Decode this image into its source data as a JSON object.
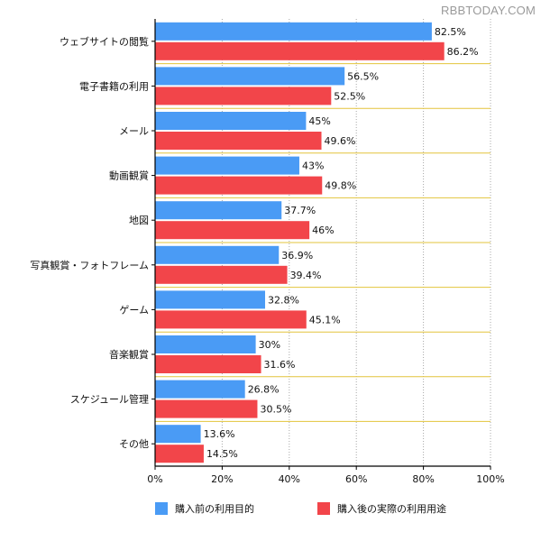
{
  "watermark": "RBBTODAY.COM",
  "chart_data": {
    "type": "bar",
    "orientation": "horizontal",
    "categories": [
      "ウェブサイトの閲覧",
      "電子書籍の利用",
      "メール",
      "動画観賞",
      "地図",
      "写真観賞・フォトフレーム",
      "ゲーム",
      "音楽観賞",
      "スケジュール管理",
      "その他"
    ],
    "series": [
      {
        "name": "購入前の利用目的",
        "color": "#4a9bf5",
        "values": [
          82.5,
          56.5,
          45,
          43,
          37.7,
          36.9,
          32.8,
          30,
          26.8,
          13.6
        ],
        "labels": [
          "82.5%",
          "56.5%",
          "45%",
          "43%",
          "37.7%",
          "36.9%",
          "32.8%",
          "30%",
          "26.8%",
          "13.6%"
        ]
      },
      {
        "name": "購入後の実際の利用用途",
        "color": "#f2454a",
        "values": [
          86.2,
          52.5,
          49.6,
          49.8,
          46,
          39.4,
          45.1,
          31.6,
          30.5,
          14.5
        ],
        "labels": [
          "86.2%",
          "52.5%",
          "49.6%",
          "49.8%",
          "46%",
          "39.4%",
          "45.1%",
          "31.6%",
          "30.5%",
          "14.5%"
        ]
      }
    ],
    "xlim": [
      0,
      100
    ],
    "xticks": [
      "0%",
      "20%",
      "40%",
      "60%",
      "80%",
      "100%"
    ],
    "grid": true,
    "legend_position": "bottom",
    "title": "",
    "xlabel": "",
    "ylabel": ""
  }
}
